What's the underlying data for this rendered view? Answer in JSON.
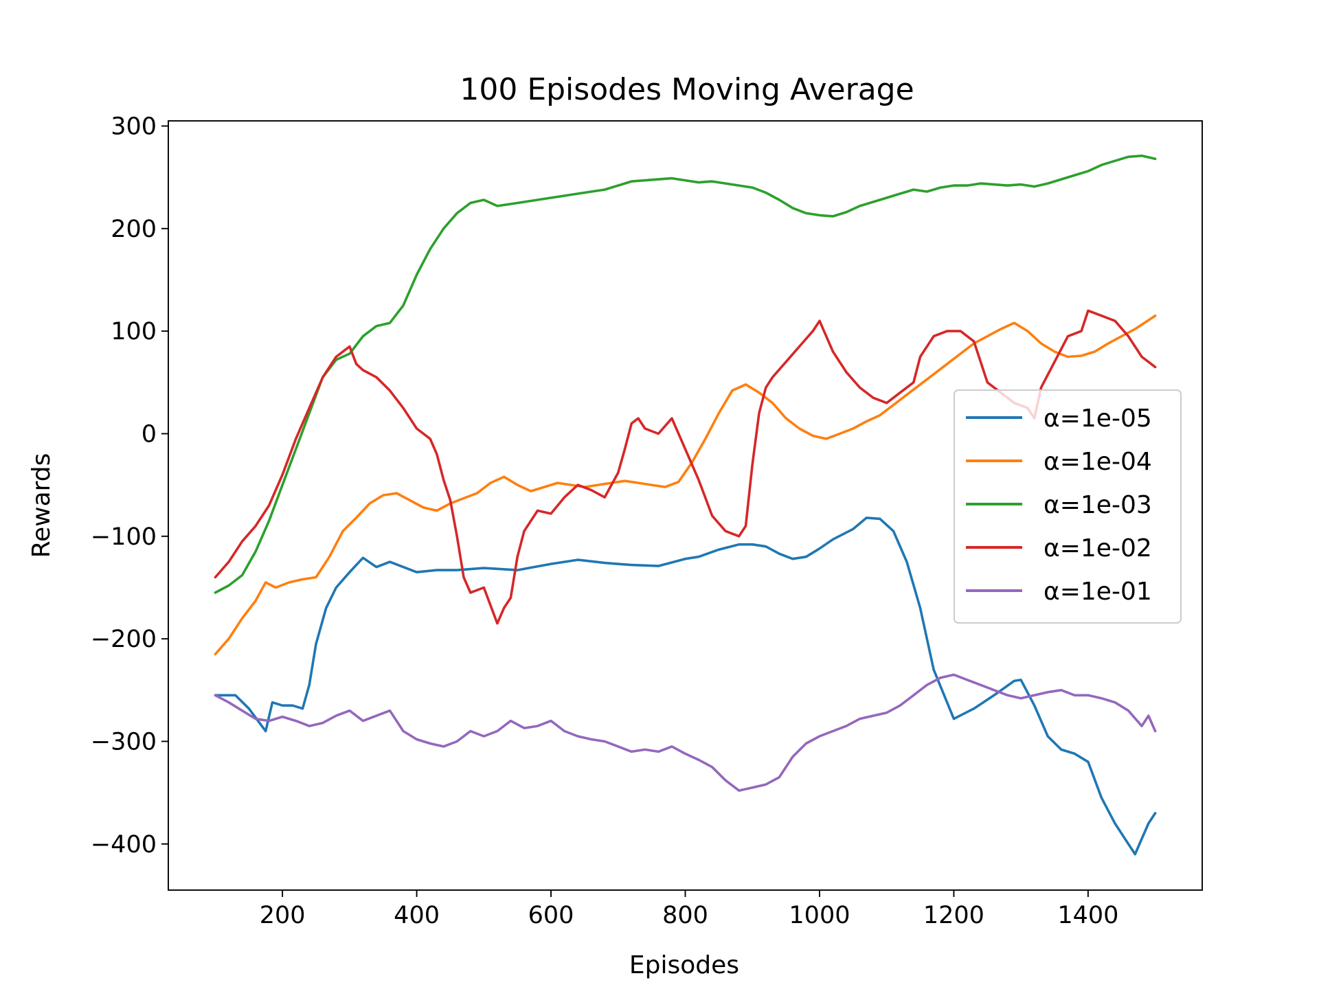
{
  "chart_data": {
    "type": "line",
    "title": "100 Episodes Moving Average",
    "xlabel": "Episodes",
    "ylabel": "Rewards",
    "xlim": [
      30,
      1570
    ],
    "ylim": [
      -445,
      305
    ],
    "xticks": [
      200,
      400,
      600,
      800,
      1000,
      1200,
      1400
    ],
    "yticks": [
      -400,
      -300,
      -200,
      -100,
      0,
      100,
      200,
      300
    ],
    "xtick_labels": [
      "200",
      "400",
      "600",
      "800",
      "1000",
      "1200",
      "1400"
    ],
    "ytick_labels": [
      "−400",
      "−300",
      "−200",
      "−100",
      "0",
      "100",
      "200",
      "300"
    ],
    "grid": false,
    "legend_position": "center-right",
    "series": [
      {
        "name": "α=1e-05",
        "color": "#1f77b4",
        "x": [
          100,
          130,
          150,
          175,
          185,
          200,
          215,
          230,
          240,
          250,
          265,
          280,
          300,
          320,
          340,
          360,
          380,
          400,
          430,
          460,
          500,
          550,
          600,
          640,
          680,
          720,
          760,
          800,
          820,
          850,
          880,
          900,
          920,
          940,
          960,
          980,
          1000,
          1020,
          1050,
          1070,
          1090,
          1110,
          1130,
          1150,
          1170,
          1200,
          1230,
          1260,
          1290,
          1300,
          1320,
          1340,
          1360,
          1380,
          1400,
          1420,
          1440,
          1460,
          1470,
          1480,
          1490,
          1500
        ],
        "y": [
          -255,
          -255,
          -268,
          -290,
          -262,
          -265,
          -265,
          -268,
          -245,
          -205,
          -170,
          -150,
          -135,
          -121,
          -130,
          -125,
          -130,
          -135,
          -133,
          -133,
          -131,
          -133,
          -127,
          -123,
          -126,
          -128,
          -129,
          -122,
          -120,
          -113,
          -108,
          -108,
          -110,
          -117,
          -122,
          -120,
          -112,
          -103,
          -93,
          -82,
          -83,
          -95,
          -125,
          -170,
          -230,
          -278,
          -268,
          -255,
          -241,
          -240,
          -265,
          -295,
          -308,
          -312,
          -320,
          -355,
          -380,
          -400,
          -410,
          -395,
          -380,
          -370
        ]
      },
      {
        "name": "α=1e-04",
        "color": "#ff7f0e",
        "x": [
          100,
          120,
          140,
          160,
          175,
          190,
          210,
          230,
          250,
          270,
          290,
          310,
          330,
          350,
          370,
          390,
          410,
          430,
          450,
          470,
          490,
          510,
          530,
          550,
          570,
          590,
          610,
          630,
          650,
          670,
          690,
          710,
          730,
          750,
          770,
          790,
          810,
          830,
          850,
          870,
          890,
          910,
          930,
          950,
          970,
          990,
          1010,
          1030,
          1050,
          1070,
          1090,
          1110,
          1130,
          1150,
          1170,
          1190,
          1210,
          1230,
          1250,
          1270,
          1290,
          1310,
          1330,
          1350,
          1370,
          1390,
          1410,
          1430,
          1450,
          1470,
          1500
        ],
        "y": [
          -215,
          -200,
          -180,
          -163,
          -145,
          -150,
          -145,
          -142,
          -140,
          -120,
          -95,
          -82,
          -68,
          -60,
          -58,
          -65,
          -72,
          -75,
          -68,
          -63,
          -58,
          -48,
          -42,
          -50,
          -56,
          -52,
          -48,
          -50,
          -52,
          -50,
          -48,
          -46,
          -48,
          -50,
          -52,
          -47,
          -28,
          -5,
          20,
          42,
          48,
          40,
          30,
          15,
          5,
          -2,
          -5,
          0,
          5,
          12,
          18,
          28,
          38,
          48,
          58,
          68,
          78,
          88,
          95,
          102,
          108,
          100,
          88,
          80,
          75,
          76,
          80,
          88,
          95,
          102,
          115
        ]
      },
      {
        "name": "α=1e-03",
        "color": "#2ca02c",
        "x": [
          100,
          120,
          140,
          160,
          180,
          200,
          220,
          240,
          260,
          280,
          300,
          320,
          340,
          360,
          380,
          400,
          420,
          440,
          460,
          480,
          500,
          520,
          540,
          560,
          580,
          600,
          620,
          640,
          660,
          680,
          700,
          720,
          740,
          760,
          780,
          800,
          820,
          840,
          860,
          880,
          900,
          920,
          940,
          960,
          980,
          1000,
          1020,
          1040,
          1060,
          1080,
          1100,
          1120,
          1140,
          1160,
          1180,
          1200,
          1220,
          1240,
          1260,
          1280,
          1300,
          1320,
          1340,
          1360,
          1380,
          1400,
          1420,
          1440,
          1460,
          1480,
          1500
        ],
        "y": [
          -155,
          -148,
          -138,
          -115,
          -85,
          -50,
          -15,
          20,
          55,
          72,
          78,
          95,
          105,
          108,
          125,
          155,
          180,
          200,
          215,
          225,
          228,
          222,
          224,
          226,
          228,
          230,
          232,
          234,
          236,
          238,
          242,
          246,
          247,
          248,
          249,
          247,
          245,
          246,
          244,
          242,
          240,
          235,
          228,
          220,
          215,
          213,
          212,
          216,
          222,
          226,
          230,
          234,
          238,
          236,
          240,
          242,
          242,
          244,
          243,
          242,
          243,
          241,
          244,
          248,
          252,
          256,
          262,
          266,
          270,
          271,
          268
        ]
      },
      {
        "name": "α=1e-02",
        "color": "#d62728",
        "x": [
          100,
          120,
          140,
          160,
          180,
          200,
          220,
          240,
          260,
          280,
          300,
          310,
          320,
          340,
          360,
          380,
          400,
          420,
          430,
          440,
          450,
          460,
          470,
          480,
          500,
          520,
          530,
          540,
          550,
          560,
          580,
          600,
          620,
          640,
          660,
          680,
          700,
          710,
          720,
          730,
          740,
          760,
          780,
          800,
          820,
          840,
          860,
          880,
          890,
          900,
          910,
          920,
          930,
          950,
          970,
          990,
          1000,
          1020,
          1040,
          1060,
          1080,
          1100,
          1120,
          1140,
          1150,
          1170,
          1190,
          1210,
          1230,
          1240,
          1250,
          1270,
          1290,
          1310,
          1320,
          1330,
          1350,
          1370,
          1390,
          1400,
          1420,
          1440,
          1460,
          1480,
          1490,
          1500
        ],
        "y": [
          -140,
          -125,
          -105,
          -90,
          -70,
          -40,
          -5,
          25,
          55,
          75,
          85,
          68,
          62,
          55,
          42,
          25,
          5,
          -5,
          -20,
          -45,
          -65,
          -100,
          -140,
          -155,
          -150,
          -185,
          -170,
          -160,
          -120,
          -95,
          -75,
          -78,
          -62,
          -50,
          -55,
          -62,
          -38,
          -15,
          10,
          15,
          5,
          0,
          15,
          -15,
          -45,
          -80,
          -95,
          -100,
          -90,
          -30,
          20,
          45,
          55,
          70,
          85,
          100,
          110,
          80,
          60,
          45,
          35,
          30,
          40,
          50,
          75,
          95,
          100,
          100,
          90,
          70,
          50,
          40,
          30,
          25,
          15,
          45,
          70,
          95,
          100,
          120,
          115,
          110,
          95,
          75,
          70,
          65
        ]
      },
      {
        "name": "α=1e-01",
        "color": "#9467bd",
        "x": [
          100,
          120,
          140,
          160,
          180,
          200,
          220,
          240,
          260,
          280,
          300,
          320,
          340,
          360,
          380,
          400,
          420,
          440,
          460,
          480,
          500,
          520,
          540,
          560,
          580,
          600,
          620,
          640,
          660,
          680,
          700,
          720,
          740,
          760,
          780,
          800,
          820,
          840,
          860,
          880,
          900,
          920,
          940,
          960,
          980,
          1000,
          1020,
          1040,
          1060,
          1080,
          1100,
          1120,
          1140,
          1160,
          1180,
          1200,
          1220,
          1240,
          1260,
          1280,
          1300,
          1320,
          1340,
          1360,
          1380,
          1400,
          1420,
          1440,
          1460,
          1480,
          1490,
          1500
        ],
        "y": [
          -255,
          -262,
          -270,
          -278,
          -280,
          -276,
          -280,
          -285,
          -282,
          -275,
          -270,
          -280,
          -275,
          -270,
          -290,
          -298,
          -302,
          -305,
          -300,
          -290,
          -295,
          -290,
          -280,
          -287,
          -285,
          -280,
          -290,
          -295,
          -298,
          -300,
          -305,
          -310,
          -308,
          -310,
          -305,
          -312,
          -318,
          -325,
          -338,
          -348,
          -345,
          -342,
          -335,
          -315,
          -302,
          -295,
          -290,
          -285,
          -278,
          -275,
          -272,
          -265,
          -255,
          -245,
          -238,
          -235,
          -240,
          -245,
          -250,
          -255,
          -258,
          -255,
          -252,
          -250,
          -255,
          -255,
          -258,
          -262,
          -270,
          -285,
          -275,
          -290
        ]
      }
    ]
  }
}
